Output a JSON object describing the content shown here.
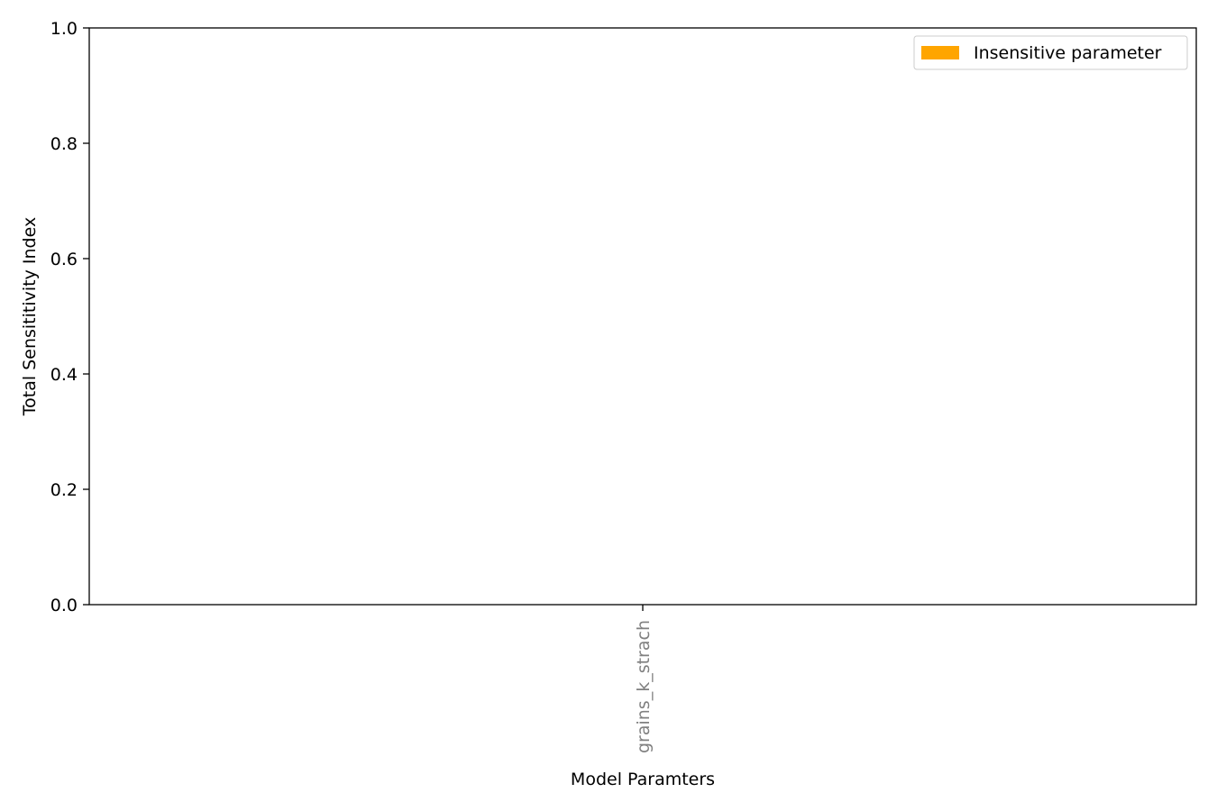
{
  "chart_data": {
    "type": "bar",
    "categories": [
      "grains_k_strach"
    ],
    "series": [
      {
        "name": "Insensitive parameter",
        "values": [
          0.0
        ],
        "color": "#ffa500"
      }
    ],
    "xlabel": "Model Paramters",
    "ylabel": "Total Sensititivity Index",
    "ylim": [
      0,
      1.0
    ],
    "yticks": [
      "0.0",
      "0.2",
      "0.4",
      "0.6",
      "0.8",
      "1.0"
    ],
    "xtick_label_color": "#808080",
    "legend_position": "top-right",
    "grid": false
  }
}
